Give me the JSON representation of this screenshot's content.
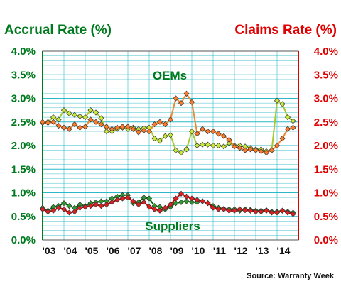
{
  "chart_data": {
    "type": "line",
    "title_left": "Accrual Rate (%)",
    "title_right": "Claims Rate (%)",
    "source": "Source: Warranty Week",
    "annotations": [
      "OEMs",
      "Suppliers"
    ],
    "y_left": {
      "min": 0,
      "max": 4,
      "ticks": [
        "0.0%",
        "0.5%",
        "1.0%",
        "1.5%",
        "2.0%",
        "2.5%",
        "3.0%",
        "3.5%",
        "4.0%"
      ]
    },
    "y_right": {
      "min": 0,
      "max": 4,
      "ticks": [
        "0.0%",
        "0.5%",
        "1.0%",
        "1.5%",
        "2.0%",
        "2.5%",
        "3.0%",
        "3.5%",
        "4.0%"
      ]
    },
    "x_range": [
      2003.0,
      2015.0
    ],
    "x_ticks": [
      {
        "label": "'03",
        "x": 2003
      },
      {
        "label": "'04",
        "x": 2004
      },
      {
        "label": "'05",
        "x": 2005
      },
      {
        "label": "'06",
        "x": 2006
      },
      {
        "label": "'07",
        "x": 2007
      },
      {
        "label": "'08",
        "x": 2008
      },
      {
        "label": "'09",
        "x": 2009
      },
      {
        "label": "'10",
        "x": 2010
      },
      {
        "label": "'11",
        "x": 2011
      },
      {
        "label": "'12",
        "x": 2012
      },
      {
        "label": "'13",
        "x": 2013
      },
      {
        "label": "'14",
        "x": 2014
      }
    ],
    "grid": true,
    "colors": {
      "oem_accrual_fill": "#c8e83a",
      "oem_accrual_line": "#a8c830",
      "oem_claims_fill": "#ff7a2a",
      "oem_claims_line": "#f08a30",
      "sup_accrual_fill": "#2e9a2e",
      "sup_accrual_line": "#006400",
      "sup_claims_fill": "#e02020",
      "sup_claims_line": "#cc0000",
      "grid": "#2bb8c8",
      "marker_edge": "#333333"
    },
    "series": [
      {
        "key": "oem_accrual",
        "axis": "left",
        "x": [
          2003.0,
          2003.25,
          2003.5,
          2003.75,
          2004.0,
          2004.25,
          2004.5,
          2004.75,
          2005.0,
          2005.25,
          2005.5,
          2005.75,
          2006.0,
          2006.25,
          2006.5,
          2006.75,
          2007.0,
          2007.25,
          2007.5,
          2007.75,
          2008.0,
          2008.25,
          2008.5,
          2008.75,
          2009.0,
          2009.25,
          2009.5,
          2009.75,
          2010.0,
          2010.25,
          2010.5,
          2010.75,
          2011.0,
          2011.25,
          2011.5,
          2011.75,
          2012.0,
          2012.25,
          2012.5,
          2012.75,
          2013.0,
          2013.25,
          2013.5,
          2013.75,
          2014.0,
          2014.25,
          2014.5,
          2014.75
        ],
        "y": [
          2.48,
          2.5,
          2.6,
          2.55,
          2.75,
          2.68,
          2.65,
          2.62,
          2.6,
          2.75,
          2.7,
          2.58,
          2.3,
          2.3,
          2.35,
          2.38,
          2.35,
          2.38,
          2.35,
          2.37,
          2.38,
          2.15,
          2.1,
          2.2,
          2.22,
          1.9,
          1.85,
          1.92,
          2.3,
          2.0,
          2.02,
          2.02,
          2.0,
          2.0,
          1.98,
          2.05,
          2.0,
          2.0,
          1.98,
          1.95,
          1.92,
          1.92,
          1.88,
          1.9,
          2.95,
          2.88,
          2.6,
          2.52
        ]
      },
      {
        "key": "oem_claims",
        "axis": "right",
        "x": [
          2003.0,
          2003.25,
          2003.5,
          2003.75,
          2004.0,
          2004.25,
          2004.5,
          2004.75,
          2005.0,
          2005.25,
          2005.5,
          2005.75,
          2006.0,
          2006.25,
          2006.5,
          2006.75,
          2007.0,
          2007.25,
          2007.5,
          2007.75,
          2008.0,
          2008.25,
          2008.5,
          2008.75,
          2009.0,
          2009.25,
          2009.5,
          2009.75,
          2010.0,
          2010.25,
          2010.5,
          2010.75,
          2011.0,
          2011.25,
          2011.5,
          2011.75,
          2012.0,
          2012.25,
          2012.5,
          2012.75,
          2013.0,
          2013.25,
          2013.5,
          2013.75,
          2014.0,
          2014.25,
          2014.5,
          2014.75
        ],
        "y": [
          2.5,
          2.48,
          2.5,
          2.42,
          2.38,
          2.35,
          2.45,
          2.38,
          2.4,
          2.55,
          2.5,
          2.45,
          2.4,
          2.35,
          2.38,
          2.4,
          2.4,
          2.35,
          2.28,
          2.32,
          2.3,
          2.45,
          2.5,
          2.45,
          2.55,
          3.0,
          2.9,
          3.1,
          2.92,
          2.25,
          2.35,
          2.3,
          2.3,
          2.25,
          2.2,
          2.12,
          1.98,
          1.95,
          1.9,
          1.92,
          1.9,
          1.88,
          1.85,
          1.9,
          2.0,
          2.15,
          2.35,
          2.38
        ]
      },
      {
        "key": "sup_accrual",
        "axis": "left",
        "x": [
          2003.0,
          2003.25,
          2003.5,
          2003.75,
          2004.0,
          2004.25,
          2004.5,
          2004.75,
          2005.0,
          2005.25,
          2005.5,
          2005.75,
          2006.0,
          2006.25,
          2006.5,
          2006.75,
          2007.0,
          2007.25,
          2007.5,
          2007.75,
          2008.0,
          2008.25,
          2008.5,
          2008.75,
          2009.0,
          2009.25,
          2009.5,
          2009.75,
          2010.0,
          2010.25,
          2010.5,
          2010.75,
          2011.0,
          2011.25,
          2011.5,
          2011.75,
          2012.0,
          2012.25,
          2012.5,
          2012.75,
          2013.0,
          2013.25,
          2013.5,
          2013.75,
          2014.0,
          2014.25,
          2014.5,
          2014.75
        ],
        "y": [
          0.68,
          0.62,
          0.7,
          0.72,
          0.78,
          0.72,
          0.68,
          0.75,
          0.72,
          0.78,
          0.8,
          0.82,
          0.82,
          0.88,
          0.92,
          0.95,
          0.95,
          0.78,
          0.8,
          0.9,
          0.88,
          0.72,
          0.7,
          0.65,
          0.7,
          0.78,
          0.8,
          0.82,
          0.8,
          0.8,
          0.82,
          0.78,
          0.72,
          0.68,
          0.66,
          0.65,
          0.65,
          0.62,
          0.65,
          0.64,
          0.62,
          0.62,
          0.63,
          0.6,
          0.6,
          0.62,
          0.6,
          0.58
        ]
      },
      {
        "key": "sup_claims",
        "axis": "right",
        "x": [
          2003.0,
          2003.25,
          2003.5,
          2003.75,
          2004.0,
          2004.25,
          2004.5,
          2004.75,
          2005.0,
          2005.25,
          2005.5,
          2005.75,
          2006.0,
          2006.25,
          2006.5,
          2006.75,
          2007.0,
          2007.25,
          2007.5,
          2007.75,
          2008.0,
          2008.25,
          2008.5,
          2008.75,
          2009.0,
          2009.25,
          2009.5,
          2009.75,
          2010.0,
          2010.25,
          2010.5,
          2010.75,
          2011.0,
          2011.25,
          2011.5,
          2011.75,
          2012.0,
          2012.25,
          2012.5,
          2012.75,
          2013.0,
          2013.25,
          2013.5,
          2013.75,
          2014.0,
          2014.25,
          2014.5,
          2014.75
        ],
        "y": [
          0.65,
          0.6,
          0.62,
          0.68,
          0.65,
          0.58,
          0.6,
          0.68,
          0.7,
          0.72,
          0.75,
          0.72,
          0.75,
          0.8,
          0.85,
          0.88,
          0.9,
          0.82,
          0.75,
          0.8,
          0.7,
          0.65,
          0.62,
          0.68,
          0.75,
          0.88,
          0.98,
          0.92,
          0.88,
          0.85,
          0.82,
          0.78,
          0.68,
          0.65,
          0.65,
          0.62,
          0.62,
          0.65,
          0.63,
          0.62,
          0.6,
          0.6,
          0.62,
          0.58,
          0.58,
          0.62,
          0.58,
          0.55
        ]
      }
    ]
  }
}
